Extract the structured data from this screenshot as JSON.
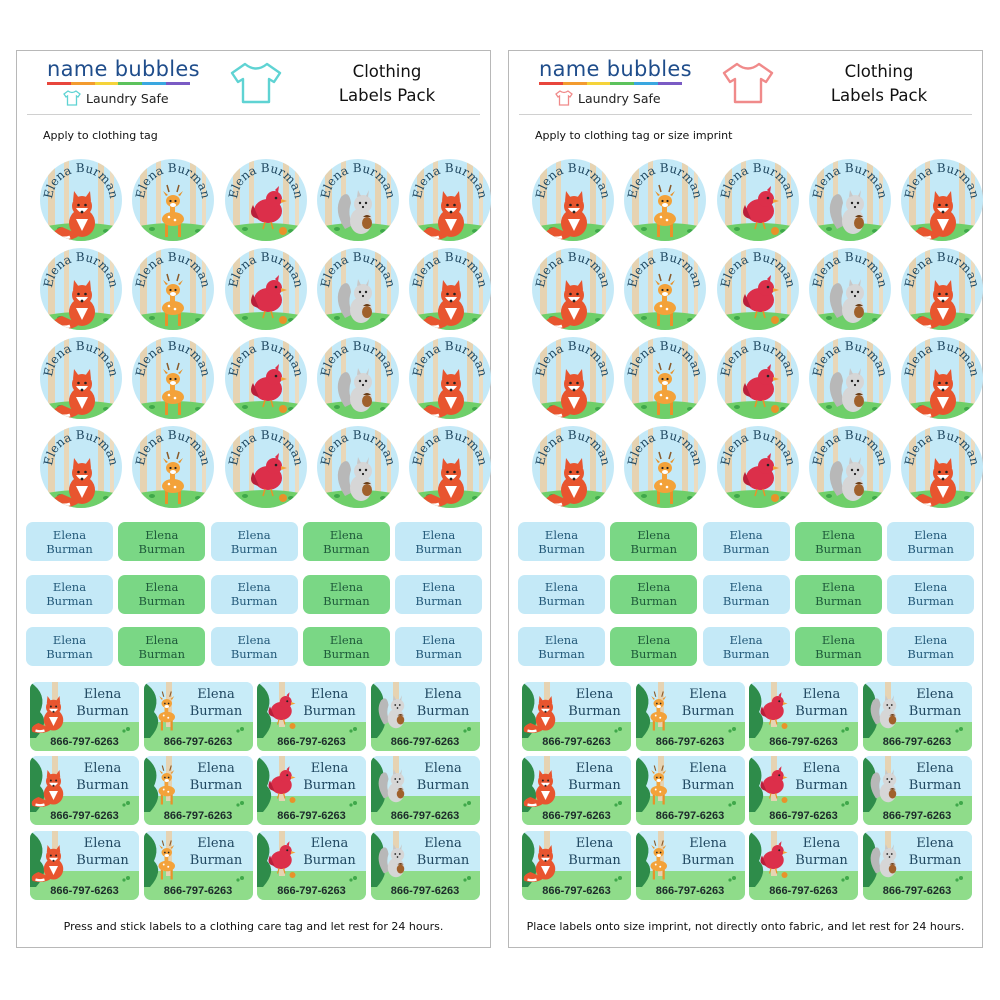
{
  "colors": {
    "navy": "#1f4d8b",
    "sky": "#c4e9f7",
    "green": "#7ad785",
    "grass": "#6fcf6a",
    "teal_shirt": "#5fd3d3",
    "pink_shirt": "#f08a8a"
  },
  "brand": {
    "name": "name bubbles",
    "subtitle": "Laundry Safe"
  },
  "sheets": [
    {
      "title_line1": "Clothing",
      "title_line2": "Labels Pack",
      "apply_text": "Apply to clothing tag",
      "footer_text": "Press and stick labels to a clothing care tag and let rest for 24 hours.",
      "shirt_icon": "shirt-outline-icon-teal"
    },
    {
      "title_line1": "Clothing",
      "title_line2": "Labels Pack",
      "apply_text": "Apply to clothing tag or size imprint",
      "footer_text": "Place labels onto size imprint, not directly onto fabric, and let rest for 24 hours.",
      "shirt_icon": "shirt-outline-icon-pink"
    }
  ],
  "label": {
    "full_name": "Elena Burman",
    "first": "Elena",
    "last": "Burman",
    "phone": "866-797-6263"
  },
  "circle_animals": [
    [
      "fox",
      "deer",
      "bird",
      "squirrel",
      "fox"
    ],
    [
      "fox",
      "deer",
      "bird",
      "squirrel",
      "fox"
    ],
    [
      "fox",
      "deer",
      "bird",
      "squirrel",
      "fox"
    ],
    [
      "fox",
      "deer",
      "bird",
      "squirrel",
      "fox"
    ]
  ],
  "rect_colors": [
    "blue",
    "green",
    "blue",
    "green",
    "blue"
  ],
  "phone_animals": [
    "fox",
    "deer",
    "bird",
    "squirrel"
  ]
}
